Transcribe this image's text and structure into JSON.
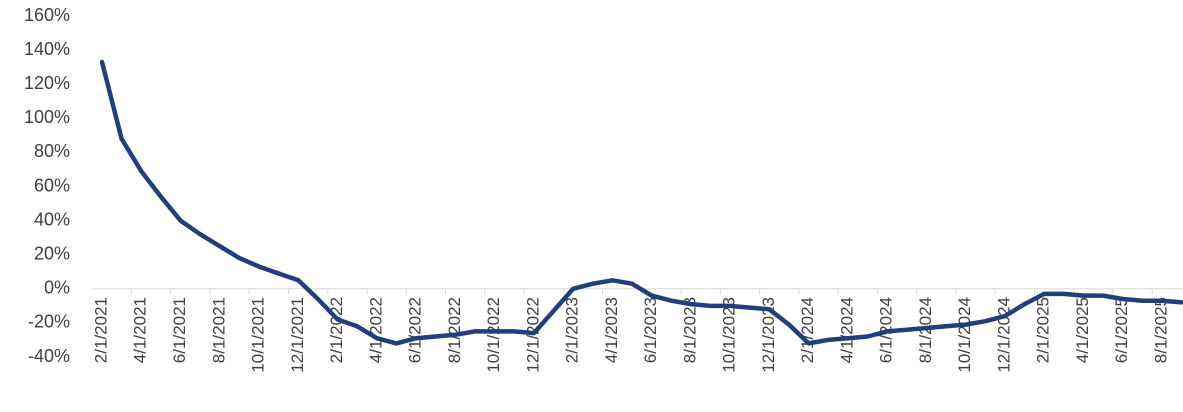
{
  "chart_data": {
    "type": "line",
    "categories": [
      "2/1/2021",
      null,
      "4/1/2021",
      null,
      "6/1/2021",
      null,
      "8/1/2021",
      null,
      "10/1/2021",
      null,
      "12/1/2021",
      null,
      "2/1/2022",
      null,
      "4/1/2022",
      null,
      "6/1/2022",
      null,
      "8/1/2022",
      null,
      "10/1/2022",
      null,
      "12/1/2022",
      null,
      "2/1/2023",
      null,
      "4/1/2023",
      null,
      "6/1/2023",
      null,
      "8/1/2023",
      null,
      "10/1/2023",
      null,
      "12/1/2023",
      null,
      "2/1/2024",
      null,
      "4/1/2024",
      null,
      "6/1/2024",
      null,
      "8/1/2024",
      null,
      "10/1/2024",
      null,
      "12/1/2024",
      null,
      "2/1/2025",
      null,
      "4/1/2025",
      null,
      "6/1/2025",
      null,
      "8/1/2025",
      null
    ],
    "series": [
      {
        "color": "#203f7e",
        "values": [
          133,
          88,
          69,
          54,
          40,
          32,
          25,
          18,
          13,
          9,
          5,
          -6,
          -18,
          -22,
          -29,
          -32,
          -29,
          -28,
          -27,
          -25,
          -25,
          -25,
          -26,
          -13,
          0,
          3,
          5,
          3,
          -4,
          -7,
          -9,
          -10,
          -10,
          -11,
          -12,
          -21,
          -32,
          -30,
          -29,
          -28,
          -25,
          -24,
          -23,
          -22,
          -21,
          -19,
          -16,
          -9,
          -3,
          -3,
          -4,
          -4,
          -6,
          -7,
          -7,
          -8
        ]
      }
    ],
    "ylim": [
      -40,
      160
    ],
    "yticks": [
      {
        "value": -40,
        "label": "-40%"
      },
      {
        "value": -20,
        "label": "-20%"
      },
      {
        "value": 0,
        "label": "0%"
      },
      {
        "value": 20,
        "label": "20%"
      },
      {
        "value": 40,
        "label": "40%"
      },
      {
        "value": 60,
        "label": "60%"
      },
      {
        "value": 80,
        "label": "80%"
      },
      {
        "value": 100,
        "label": "100%"
      },
      {
        "value": 120,
        "label": "120%"
      },
      {
        "value": 140,
        "label": "140%"
      },
      {
        "value": 160,
        "label": "160%"
      }
    ]
  }
}
